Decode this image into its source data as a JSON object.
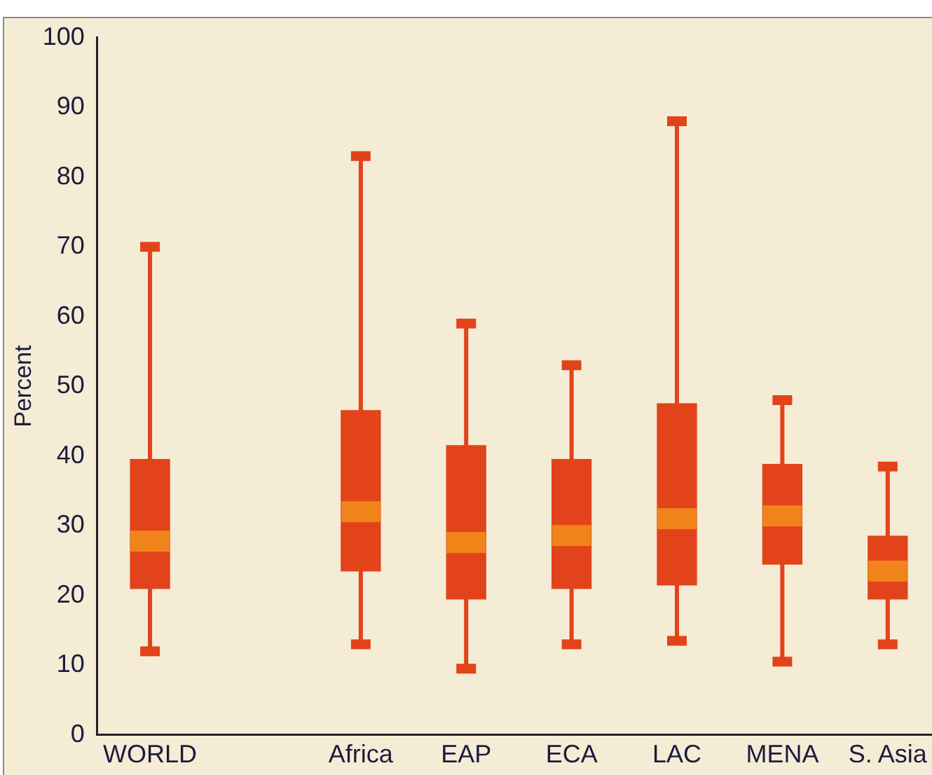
{
  "chart_data": {
    "type": "box",
    "ylabel": "Percent",
    "categories": [
      "WORLD",
      null,
      "Africa",
      "EAP",
      "ECA",
      "LAC",
      "MENA",
      "S. Asia"
    ],
    "boxes": [
      {
        "low": 12,
        "q1": 21,
        "median": 27.8,
        "q3": 39.5,
        "high": 70
      },
      null,
      {
        "low": 13,
        "q1": 23.5,
        "median": 32,
        "q3": 46.5,
        "high": 83
      },
      {
        "low": 9.5,
        "q1": 19.5,
        "median": 27.6,
        "q3": 41.5,
        "high": 59
      },
      {
        "low": 13,
        "q1": 21,
        "median": 28.6,
        "q3": 39.5,
        "high": 53
      },
      {
        "low": 13.5,
        "q1": 21.5,
        "median": 31,
        "q3": 47.5,
        "high": 88
      },
      {
        "low": 10.5,
        "q1": 24.5,
        "median": 31.4,
        "q3": 38.8,
        "high": 48
      },
      {
        "low": 13,
        "q1": 19.5,
        "median": 23.5,
        "q3": 28.5,
        "high": 38.5
      }
    ],
    "color": "#e2431a",
    "ylim": [
      0,
      100
    ],
    "yticks": [
      0,
      10,
      20,
      30,
      40,
      50,
      60,
      70,
      80,
      90,
      100
    ],
    "grid": false,
    "legend": false
  }
}
